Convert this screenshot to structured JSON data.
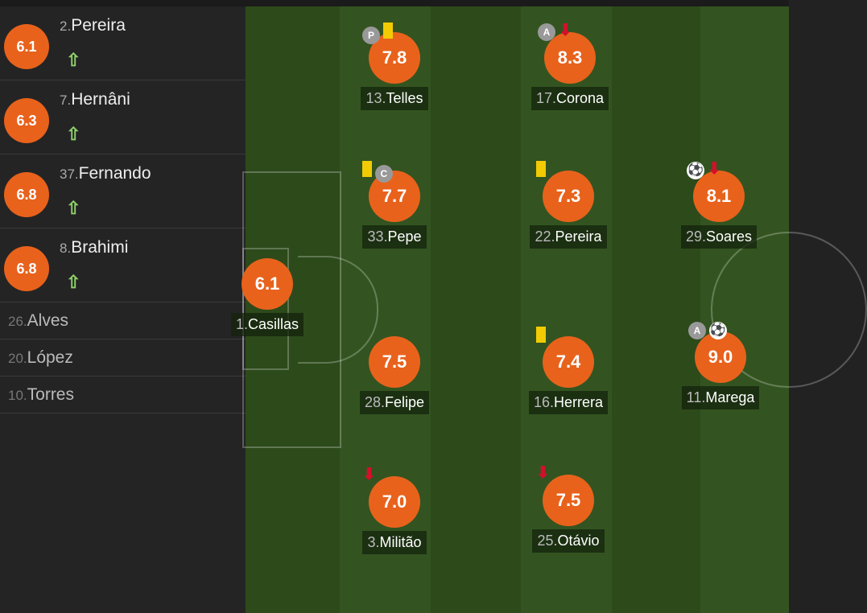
{
  "colors": {
    "rating": "#e8621c",
    "yellow_card": "#f2cb05",
    "sub_off": "#d3102b",
    "sub_on": "#8fd16a"
  },
  "substitutes": [
    {
      "num": "2.",
      "name": "Pereira",
      "rating": "6.1",
      "icon": "arrow-up-icon"
    },
    {
      "num": "7.",
      "name": "Hernâni",
      "rating": "6.3",
      "icon": "arrow-up-icon"
    },
    {
      "num": "37.",
      "name": "Fernando",
      "rating": "6.8",
      "icon": "arrow-up-icon"
    },
    {
      "num": "8.",
      "name": "Brahimi",
      "rating": "6.8",
      "icon": "arrow-up-icon"
    }
  ],
  "bench": [
    {
      "num": "26.",
      "name": "Alves"
    },
    {
      "num": "20.",
      "name": "López"
    },
    {
      "num": "10.",
      "name": "Torres"
    }
  ],
  "players": [
    {
      "num": "13.",
      "name": "Telles",
      "rating": "7.8",
      "events": [
        "penalty-icon",
        "yellow-card-icon"
      ]
    },
    {
      "num": "17.",
      "name": "Corona",
      "rating": "8.3",
      "events": [
        "assist-icon",
        "arrow-down-icon"
      ]
    },
    {
      "num": "33.",
      "name": "Pepe",
      "rating": "7.7",
      "events": [
        "yellow-card-icon",
        "captain-icon"
      ]
    },
    {
      "num": "22.",
      "name": "Pereira",
      "rating": "7.3",
      "events": [
        "yellow-card-icon"
      ]
    },
    {
      "num": "29.",
      "name": "Soares",
      "rating": "8.1",
      "events": [
        "goal-icon",
        "arrow-down-icon"
      ]
    },
    {
      "num": "1.",
      "name": "Casillas",
      "rating": "6.1",
      "events": []
    },
    {
      "num": "28.",
      "name": "Felipe",
      "rating": "7.5",
      "events": []
    },
    {
      "num": "16.",
      "name": "Herrera",
      "rating": "7.4",
      "events": [
        "yellow-card-icon"
      ]
    },
    {
      "num": "11.",
      "name": "Marega",
      "rating": "9.0",
      "events": [
        "assist-icon",
        "goal-icon"
      ]
    },
    {
      "num": "3.",
      "name": "Militão",
      "rating": "7.0",
      "events": [
        "arrow-down-icon"
      ]
    },
    {
      "num": "25.",
      "name": "Otávio",
      "rating": "7.5",
      "events": [
        "arrow-down-icon"
      ]
    }
  ],
  "badges": {
    "penalty": "P",
    "assist": "A",
    "captain": "C"
  }
}
